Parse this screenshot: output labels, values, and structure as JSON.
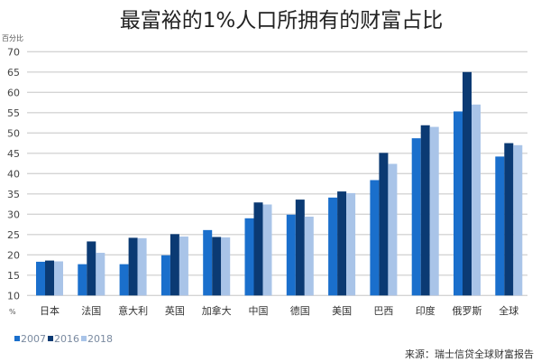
{
  "chart_data": {
    "type": "bar",
    "title": "最富裕的1%人口所拥有的财富占比",
    "ylabel": "百分比",
    "yunit": "%",
    "ylim": [
      10,
      70
    ],
    "yticks": [
      10,
      15,
      20,
      25,
      30,
      35,
      40,
      45,
      50,
      55,
      60,
      65,
      70
    ],
    "grid": true,
    "legend_position": "bottom-left",
    "categories": [
      "日本",
      "法国",
      "意大利",
      "英国",
      "加拿大",
      "中国",
      "德国",
      "美国",
      "巴西",
      "印度",
      "俄罗斯",
      "全球"
    ],
    "series": [
      {
        "name": "2007",
        "color": "#1a6fcc",
        "values": [
          18.3,
          17.7,
          17.7,
          19.9,
          26.1,
          29.0,
          29.9,
          34.1,
          38.4,
          48.7,
          55.3,
          44.2
        ]
      },
      {
        "name": "2016",
        "color": "#0b3a73",
        "values": [
          18.6,
          23.3,
          24.2,
          25.1,
          24.4,
          32.9,
          33.6,
          35.6,
          45.1,
          51.9,
          65.0,
          47.5
        ]
      },
      {
        "name": "2018",
        "color": "#a9c4e8",
        "values": [
          18.4,
          20.5,
          24.1,
          24.5,
          24.3,
          32.4,
          29.4,
          35.2,
          42.4,
          51.5,
          57.0,
          47.0
        ]
      }
    ],
    "source": "来源：瑞士信贷全球财富报告"
  }
}
